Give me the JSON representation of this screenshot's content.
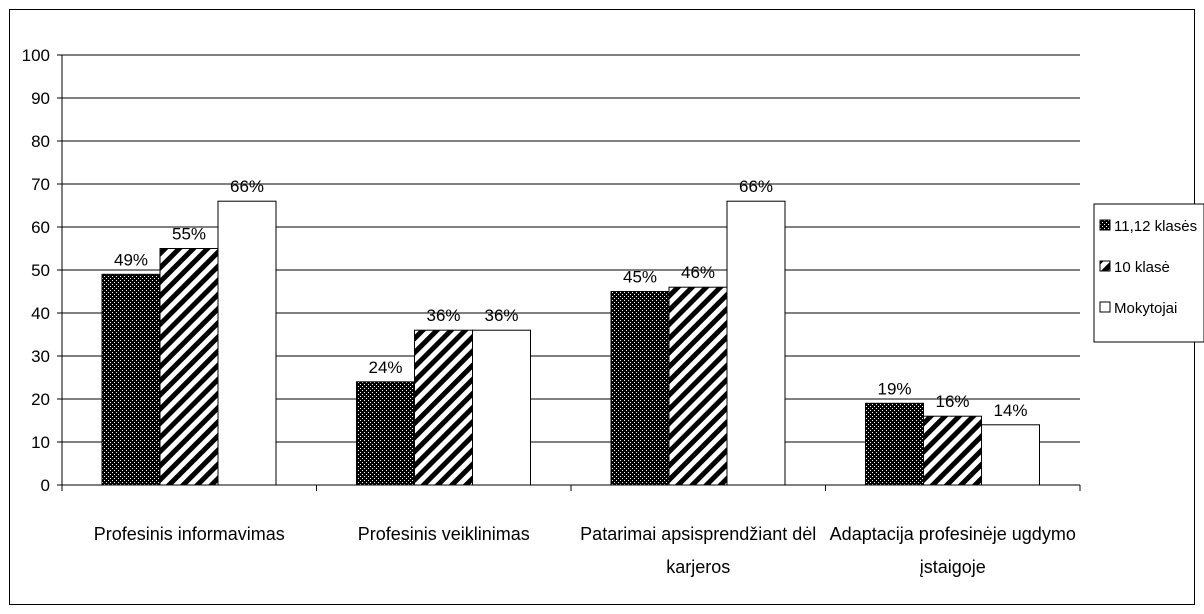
{
  "chart_data": {
    "type": "bar",
    "title": "",
    "xlabel": "",
    "ylabel": "",
    "ylim": [
      0,
      100
    ],
    "yticks": [
      0,
      10,
      20,
      30,
      40,
      50,
      60,
      70,
      80,
      90,
      100
    ],
    "grid": true,
    "legend_position": "right",
    "categories": [
      [
        "Profesinis informavimas"
      ],
      [
        "Profesinis veiklinimas"
      ],
      [
        "Patarimai apsisprendžiant dėl",
        "karjeros"
      ],
      [
        "Adaptacija profesinėje ugdymo",
        "įstaigoje"
      ]
    ],
    "series": [
      {
        "name": "11,12 klasės",
        "pattern": "dots",
        "values": [
          49,
          24,
          45,
          19
        ],
        "labels": [
          "49%",
          "24%",
          "45%",
          "19%"
        ]
      },
      {
        "name": "10 klasė",
        "pattern": "diagonal",
        "values": [
          55,
          36,
          46,
          16
        ],
        "labels": [
          "55%",
          "36%",
          "46%",
          "16%"
        ]
      },
      {
        "name": "Mokytojai",
        "pattern": "white",
        "values": [
          66,
          36,
          66,
          14
        ],
        "labels": [
          "66%",
          "36%",
          "66%",
          "14%"
        ]
      }
    ]
  }
}
